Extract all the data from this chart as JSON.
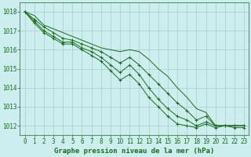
{
  "bg_color": "#cceeee",
  "grid_color": "#aacccc",
  "line_color": "#1a6b1a",
  "title": "Graphe pression niveau de la mer (hPa)",
  "title_color": "#1a6b1a",
  "xlim": [
    -0.5,
    23.5
  ],
  "ylim": [
    1011.5,
    1018.5
  ],
  "yticks": [
    1012,
    1013,
    1014,
    1015,
    1016,
    1017,
    1018
  ],
  "xticks": [
    0,
    1,
    2,
    3,
    4,
    5,
    6,
    7,
    8,
    9,
    10,
    11,
    12,
    13,
    14,
    15,
    16,
    17,
    18,
    19,
    20,
    21,
    22,
    23
  ],
  "series": [
    [
      1018.0,
      1017.8,
      1017.3,
      1017.1,
      1016.9,
      1016.7,
      1016.5,
      1016.3,
      1016.1,
      1016.0,
      1015.9,
      1016.0,
      1015.9,
      1015.5,
      1015.0,
      1014.6,
      1014.0,
      1013.5,
      1012.9,
      1012.7,
      1012.0,
      1012.0,
      1012.0,
      1012.0
    ],
    [
      1018.0,
      1017.6,
      1017.2,
      1016.9,
      1016.6,
      1016.5,
      1016.3,
      1016.1,
      1015.9,
      1015.6,
      1015.3,
      1015.6,
      1015.2,
      1014.7,
      1014.2,
      1013.7,
      1013.2,
      1012.8,
      1012.3,
      1012.5,
      1012.0,
      1012.0,
      1012.0,
      1012.0
    ],
    [
      1018.0,
      1017.5,
      1017.0,
      1016.7,
      1016.4,
      1016.4,
      1016.1,
      1015.9,
      1015.6,
      1015.2,
      1014.8,
      1015.2,
      1014.7,
      1014.0,
      1013.4,
      1012.9,
      1012.5,
      1012.3,
      1012.0,
      1012.2,
      1012.0,
      1012.0,
      1012.0,
      1012.0
    ],
    [
      1018.0,
      1017.4,
      1016.9,
      1016.6,
      1016.3,
      1016.3,
      1016.0,
      1015.7,
      1015.4,
      1014.9,
      1014.4,
      1014.7,
      1014.2,
      1013.5,
      1013.0,
      1012.5,
      1012.1,
      1012.0,
      1011.9,
      1012.1,
      1011.9,
      1012.0,
      1011.9,
      1011.9
    ]
  ],
  "has_markers": [
    false,
    true,
    true,
    true
  ],
  "fontsize_title": 6.5,
  "fontsize_ticks": 5.5
}
